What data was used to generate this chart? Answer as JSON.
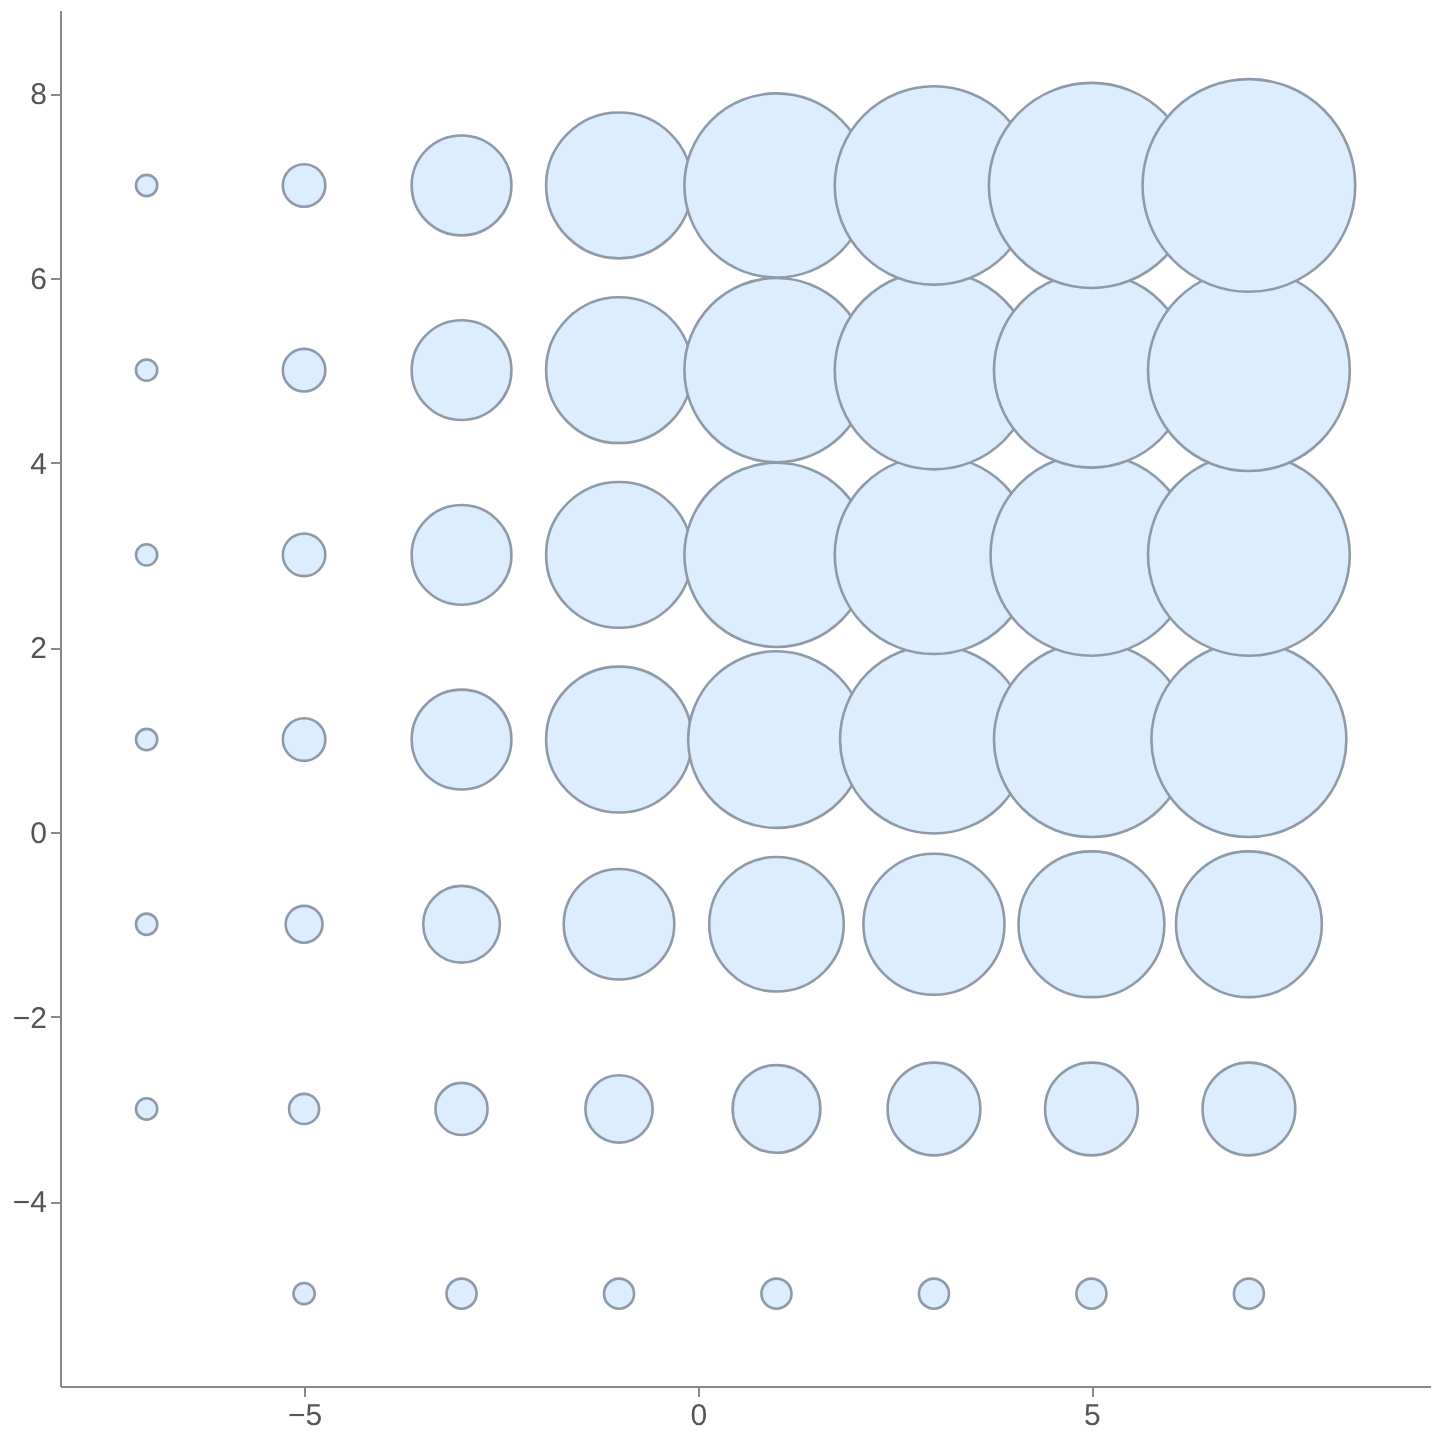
{
  "chart_data": {
    "type": "bubble",
    "xlim": [
      -8.1,
      9.3
    ],
    "ylim": [
      -6,
      8.9
    ],
    "xticks": [
      -5,
      0,
      5
    ],
    "yticks": [
      -4,
      -2,
      0,
      2,
      4,
      6,
      8
    ],
    "grid": false,
    "legend": false,
    "marker": "circle",
    "series": [
      {
        "color": "#dcedff",
        "x": [
          -5,
          -3,
          -1,
          1,
          3,
          5,
          7,
          -7,
          -5,
          -3,
          -1,
          1,
          3,
          5,
          7,
          -7,
          -5,
          -3,
          -1,
          1,
          3,
          5,
          7,
          -7,
          -5,
          -3,
          -1,
          1,
          3,
          5,
          7,
          -7,
          -5,
          -3,
          -1,
          1,
          3,
          5,
          7,
          -7,
          -5,
          -3,
          -1,
          1,
          3,
          5,
          7,
          -7,
          -5,
          -3,
          -1,
          1,
          3,
          5,
          7
        ],
        "values": [
          -5,
          -5,
          -5,
          -5,
          -5,
          -5,
          -5,
          -3,
          -3,
          -3,
          -3,
          -3,
          -3,
          -3,
          -3,
          -1,
          -1,
          -1,
          -1,
          -1,
          -1,
          -1,
          -1,
          1,
          1,
          1,
          1,
          1,
          1,
          1,
          1,
          3,
          3,
          3,
          3,
          3,
          3,
          3,
          3,
          5,
          5,
          5,
          5,
          5,
          5,
          5,
          5,
          7,
          7,
          7,
          7,
          7,
          7,
          7,
          7
        ],
        "sizes": [
          0.01,
          0.02,
          0.02,
          0.02,
          0.02,
          0.02,
          0.02,
          0.01,
          0.02,
          0.06,
          0.1,
          0.17,
          0.19,
          0.19,
          0.19,
          0.01,
          0.03,
          0.13,
          0.27,
          0.4,
          0.44,
          0.47,
          0.47,
          0.01,
          0.04,
          0.22,
          0.47,
          0.69,
          0.78,
          0.84,
          0.84,
          0.01,
          0.04,
          0.22,
          0.47,
          0.75,
          0.87,
          0.9,
          0.9,
          0.01,
          0.04,
          0.22,
          0.47,
          0.75,
          0.87,
          0.84,
          0.9,
          0.01,
          0.04,
          0.22,
          0.47,
          0.75,
          0.87,
          0.93,
          1
        ]
      }
    ]
  }
}
